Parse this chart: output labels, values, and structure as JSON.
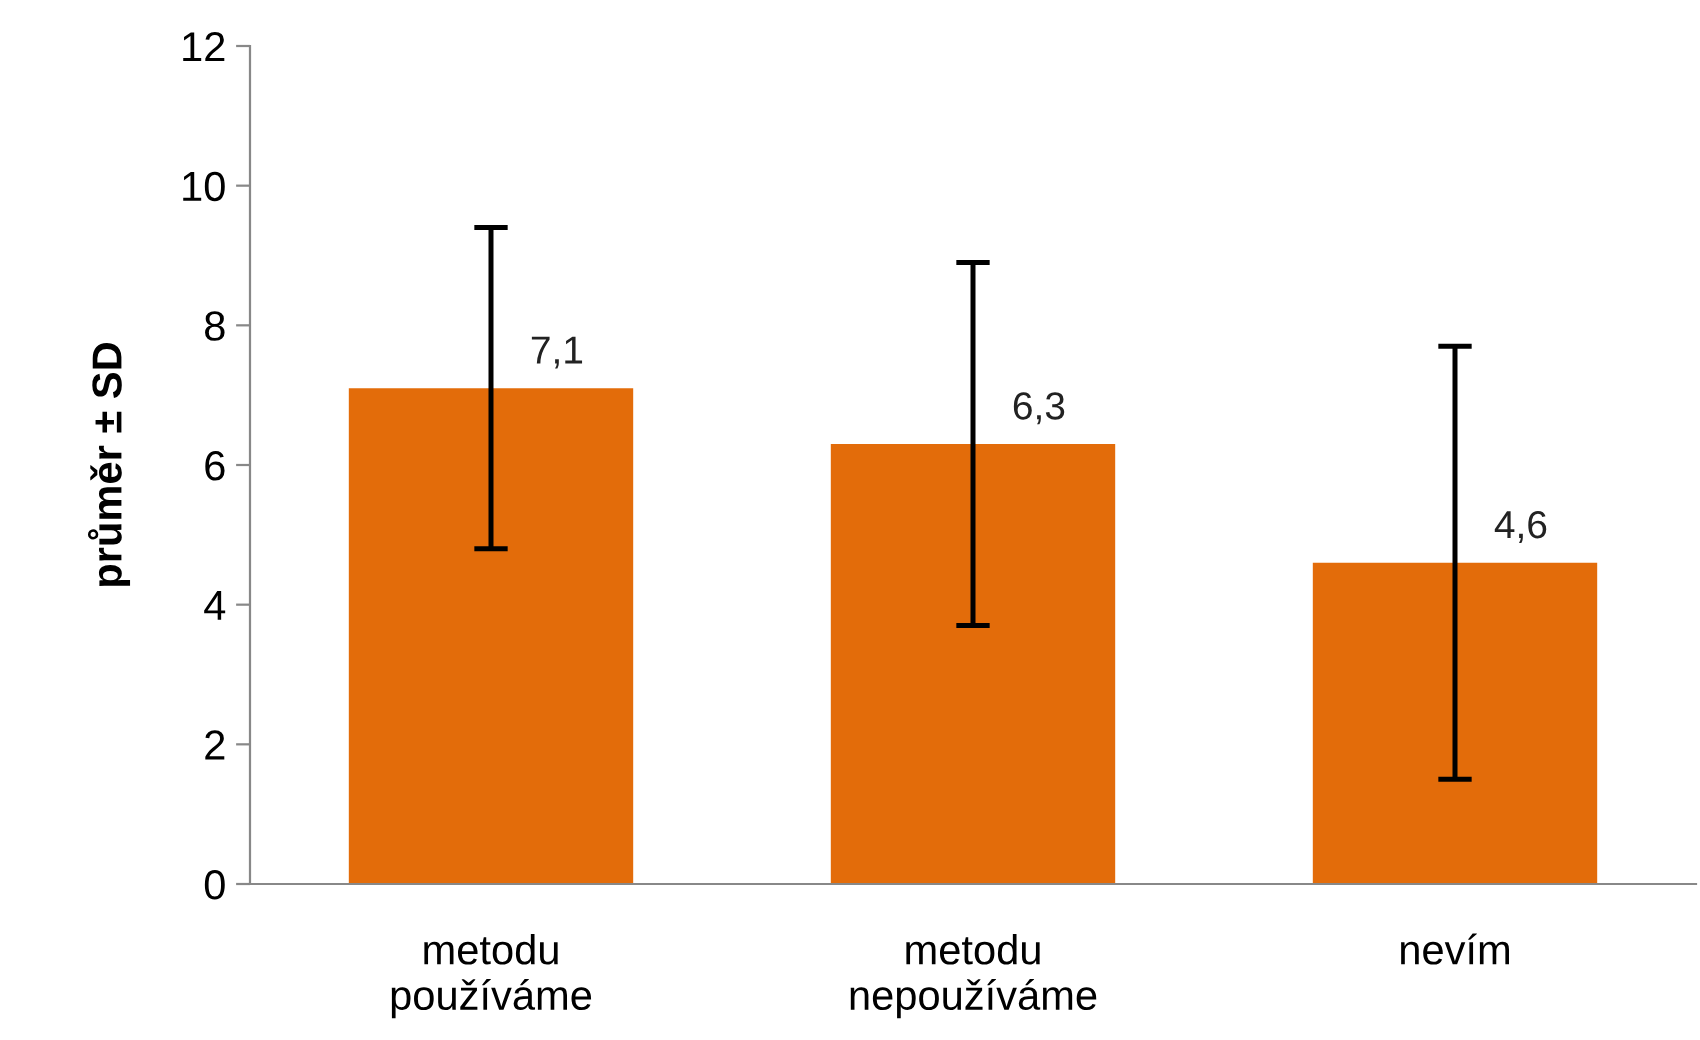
{
  "chart_data": {
    "type": "bar",
    "ylabel": "průměr ± SD",
    "categories": [
      "metodu\npoužíváme",
      "metodu\nnepoužíváme",
      "nevím"
    ],
    "values": [
      7.1,
      6.3,
      4.6
    ],
    "errors": [
      2.3,
      2.6,
      3.1
    ],
    "value_labels": [
      "7,1",
      "6,3",
      "4,6"
    ],
    "color": "#e36c0a",
    "ylim": [
      0,
      12
    ],
    "yticks": [
      0,
      2,
      4,
      6,
      8,
      10,
      12
    ],
    "grid": false,
    "legend": false
  }
}
